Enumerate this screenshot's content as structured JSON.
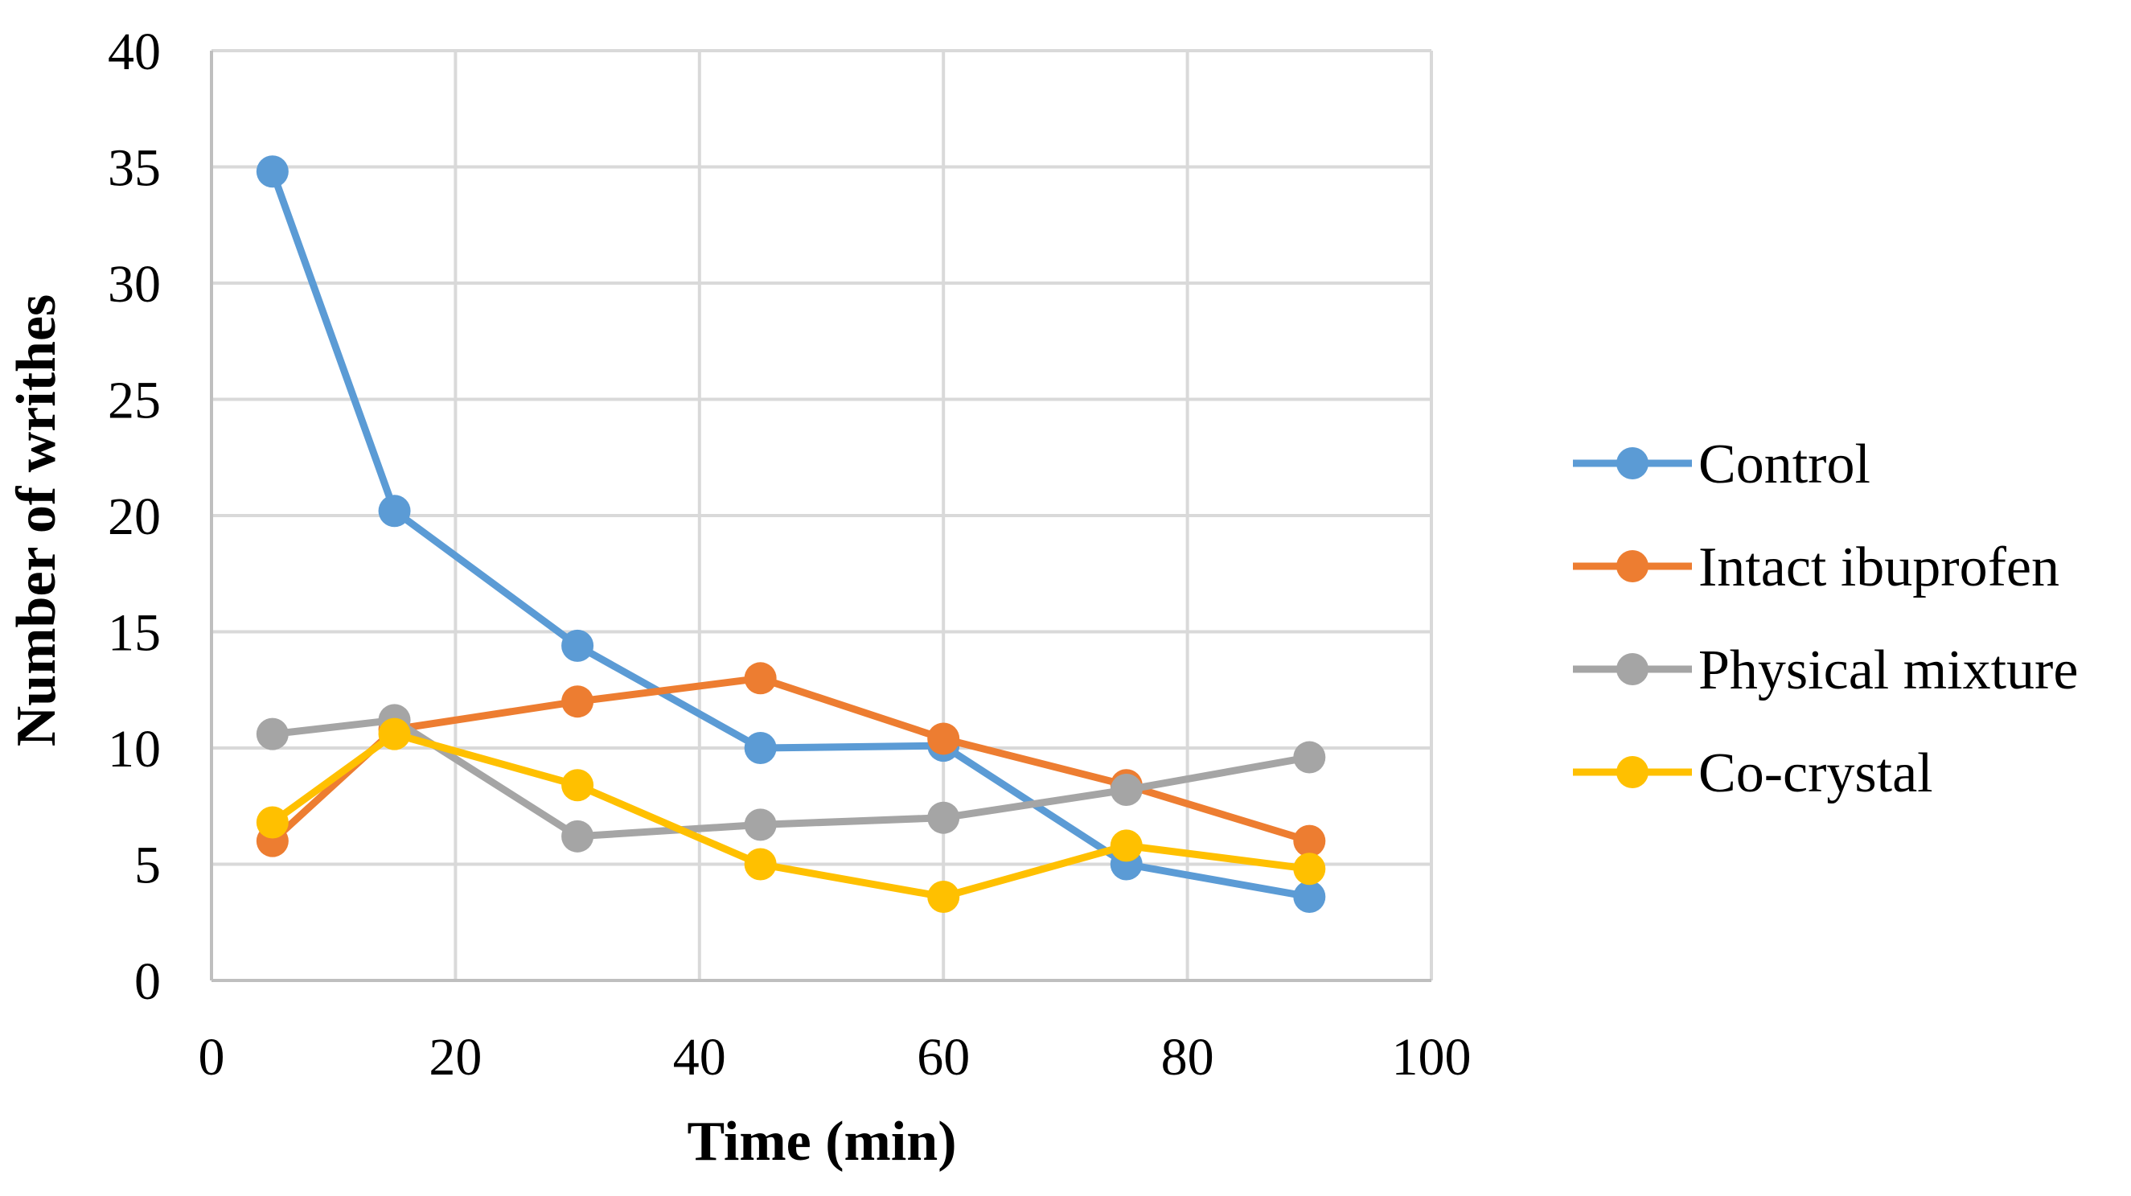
{
  "chart_data": {
    "type": "line",
    "title": "",
    "xlabel": "Time (min)",
    "ylabel": "Number of writhes",
    "xlim": [
      0,
      100
    ],
    "ylim": [
      0,
      40
    ],
    "xticks": [
      0,
      20,
      40,
      60,
      80,
      100
    ],
    "yticks": [
      0,
      5,
      10,
      15,
      20,
      25,
      30,
      35,
      40
    ],
    "grid": true,
    "legend_position": "right",
    "x": [
      5,
      15,
      30,
      45,
      60,
      75,
      90
    ],
    "series": [
      {
        "name": "Control",
        "color": "#5B9BD5",
        "values": [
          34.8,
          20.2,
          14.4,
          10.0,
          10.1,
          5.0,
          3.6
        ]
      },
      {
        "name": "Intact ibuprofen",
        "color": "#ED7D31",
        "values": [
          6.0,
          10.8,
          12.0,
          13.0,
          10.4,
          8.4,
          6.0
        ]
      },
      {
        "name": "Physical mixture",
        "color": "#A5A5A5",
        "values": [
          10.6,
          11.2,
          6.2,
          6.7,
          7.0,
          8.2,
          9.6
        ]
      },
      {
        "name": "Co-crystal",
        "color": "#FFC000",
        "values": [
          6.8,
          10.6,
          8.4,
          5.0,
          3.6,
          5.8,
          4.8
        ]
      }
    ]
  }
}
